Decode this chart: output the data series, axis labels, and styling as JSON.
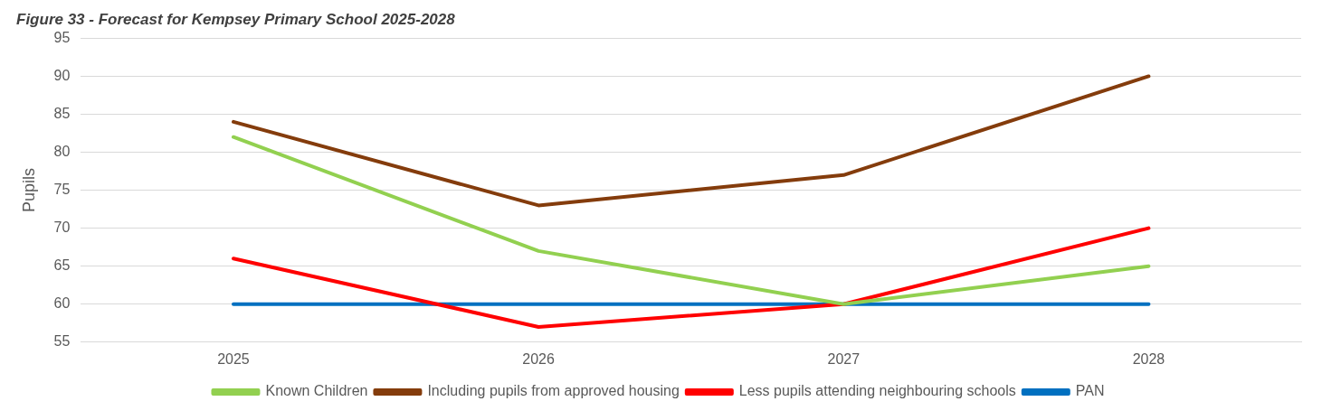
{
  "chart_data": {
    "type": "line",
    "title": "Figure 33 - Forecast for Kempsey Primary School 2025-2028",
    "ylabel": "Pupils",
    "categories": [
      "2025",
      "2026",
      "2027",
      "2028"
    ],
    "series": [
      {
        "name": "Known Children",
        "color": "#92d050",
        "values": [
          82,
          67,
          60,
          65
        ]
      },
      {
        "name": "Including pupils from approved housing",
        "color": "#843c0c",
        "values": [
          84,
          73,
          77,
          90
        ]
      },
      {
        "name": "Less pupils attending neighbouring schools",
        "color": "#ff0000",
        "values": [
          66,
          57,
          60,
          70
        ]
      },
      {
        "name": "PAN",
        "color": "#0070c0",
        "values": [
          60,
          60,
          60,
          60
        ]
      }
    ],
    "ylim": [
      55,
      95
    ],
    "yticks": [
      55,
      60,
      65,
      70,
      75,
      80,
      85,
      90,
      95
    ],
    "grid": "y",
    "legend": "bottom",
    "marker": "none",
    "line_style": "solid"
  }
}
